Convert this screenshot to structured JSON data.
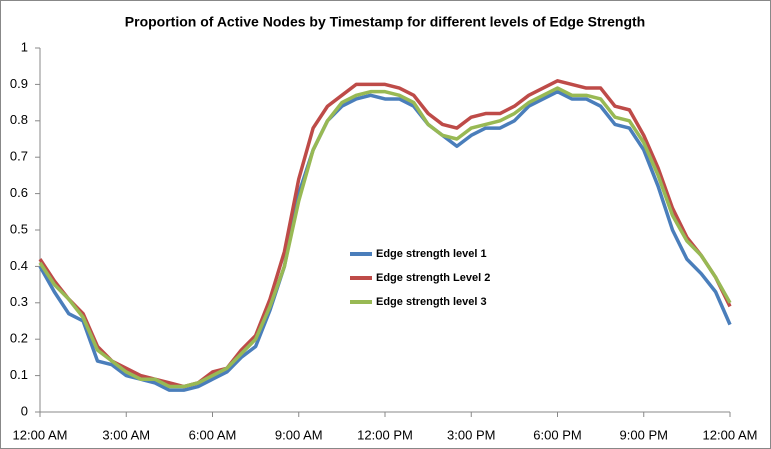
{
  "chart_data": {
    "type": "line",
    "title": "Proportion of Active Nodes by Timestamp for different levels of Edge Strength",
    "x": [
      0,
      0.5,
      1,
      1.5,
      2,
      2.5,
      3,
      3.5,
      4,
      4.5,
      5,
      5.5,
      6,
      6.5,
      7,
      7.5,
      8,
      8.5,
      9,
      9.5,
      10,
      10.5,
      11,
      11.5,
      12,
      12.5,
      13,
      13.5,
      14,
      14.5,
      15,
      15.5,
      16,
      16.5,
      17,
      17.5,
      18,
      18.5,
      19,
      19.5,
      20,
      20.5,
      21,
      21.5,
      22,
      22.5,
      23,
      23.5,
      24
    ],
    "xlim": [
      0,
      24
    ],
    "xticks": [
      {
        "value": 0,
        "label": "12:00 AM"
      },
      {
        "value": 3,
        "label": "3:00 AM"
      },
      {
        "value": 6,
        "label": "6:00 AM"
      },
      {
        "value": 9,
        "label": "9:00 AM"
      },
      {
        "value": 12,
        "label": "12:00 PM"
      },
      {
        "value": 15,
        "label": "3:00 PM"
      },
      {
        "value": 18,
        "label": "6:00 PM"
      },
      {
        "value": 21,
        "label": "9:00 PM"
      },
      {
        "value": 24,
        "label": "12:00 AM"
      }
    ],
    "ylim": [
      0,
      1
    ],
    "yticks": [
      0,
      0.1,
      0.2,
      0.3,
      0.4,
      0.5,
      0.6,
      0.7,
      0.8,
      0.9,
      1
    ],
    "grid": false,
    "legend": "center",
    "series": [
      {
        "name": "Edge strength level 1",
        "color": "#4a7ebb",
        "values": [
          0.4,
          0.33,
          0.27,
          0.25,
          0.14,
          0.13,
          0.1,
          0.09,
          0.08,
          0.06,
          0.06,
          0.07,
          0.09,
          0.11,
          0.15,
          0.18,
          0.28,
          0.4,
          0.6,
          0.72,
          0.8,
          0.84,
          0.86,
          0.87,
          0.86,
          0.86,
          0.84,
          0.79,
          0.76,
          0.73,
          0.76,
          0.78,
          0.78,
          0.8,
          0.84,
          0.86,
          0.88,
          0.86,
          0.86,
          0.84,
          0.79,
          0.78,
          0.72,
          0.62,
          0.5,
          0.42,
          0.38,
          0.33,
          0.24
        ]
      },
      {
        "name": "Edge strength  Level 2",
        "color": "#be4b48",
        "values": [
          0.42,
          0.36,
          0.31,
          0.27,
          0.18,
          0.14,
          0.12,
          0.1,
          0.09,
          0.08,
          0.07,
          0.08,
          0.11,
          0.12,
          0.17,
          0.21,
          0.31,
          0.44,
          0.64,
          0.78,
          0.84,
          0.87,
          0.9,
          0.9,
          0.9,
          0.89,
          0.87,
          0.82,
          0.79,
          0.78,
          0.81,
          0.82,
          0.82,
          0.84,
          0.87,
          0.89,
          0.91,
          0.9,
          0.89,
          0.89,
          0.84,
          0.83,
          0.76,
          0.67,
          0.56,
          0.48,
          0.43,
          0.37,
          0.29
        ]
      },
      {
        "name": "Edge strength level 3",
        "color": "#98b954",
        "values": [
          0.41,
          0.35,
          0.31,
          0.26,
          0.17,
          0.14,
          0.11,
          0.09,
          0.09,
          0.07,
          0.07,
          0.08,
          0.1,
          0.12,
          0.16,
          0.2,
          0.29,
          0.4,
          0.58,
          0.72,
          0.8,
          0.85,
          0.87,
          0.88,
          0.88,
          0.87,
          0.85,
          0.79,
          0.76,
          0.75,
          0.78,
          0.79,
          0.8,
          0.82,
          0.85,
          0.87,
          0.89,
          0.87,
          0.87,
          0.86,
          0.81,
          0.8,
          0.74,
          0.65,
          0.54,
          0.47,
          0.43,
          0.37,
          0.3
        ]
      }
    ]
  }
}
